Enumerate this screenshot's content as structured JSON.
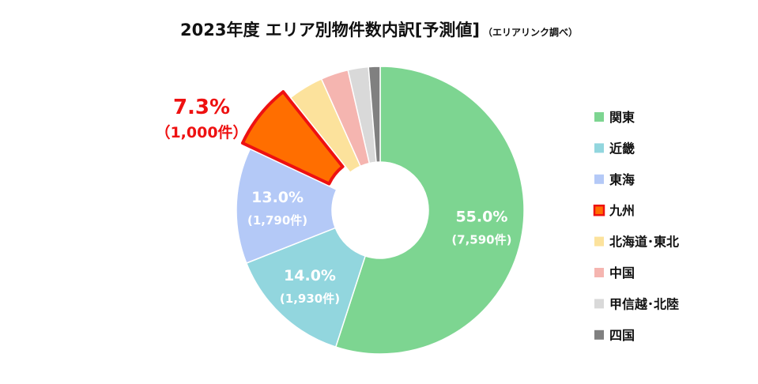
{
  "chart_data": {
    "type": "pie",
    "title": "2023年度 エリア別物件数内訳[予測値]",
    "subtitle": "（エリアリンク調べ）",
    "legend_position": "right",
    "slices": [
      {
        "name": "関東",
        "value": 55.0,
        "pct_label": "55.0%",
        "count_label": "(7,590件)",
        "color": "#7dd591",
        "label_color": "#ffffff"
      },
      {
        "name": "近畿",
        "value": 14.0,
        "pct_label": "14.0%",
        "count_label": "(1,930件)",
        "color": "#92d6de",
        "label_color": "#ffffff"
      },
      {
        "name": "東海",
        "value": 13.0,
        "pct_label": "13.0%",
        "count_label": "(1,790件)",
        "color": "#b4c9f7",
        "label_color": "#ffffff"
      },
      {
        "name": "九州",
        "value": 7.3,
        "pct_label": "7.3%",
        "count_label": "（1,000件）",
        "color": "#ff6e00",
        "label_color": "#ee1111",
        "highlight": true,
        "outline_color": "#ee1111"
      },
      {
        "name": "北海道･東北",
        "value": 4.0,
        "color": "#fce29c"
      },
      {
        "name": "中国",
        "value": 3.1,
        "color": "#f5b5b0"
      },
      {
        "name": "甲信越･北陸",
        "value": 2.3,
        "color": "#d9d9d9"
      },
      {
        "name": "四国",
        "value": 1.3,
        "color": "#808080"
      }
    ]
  }
}
